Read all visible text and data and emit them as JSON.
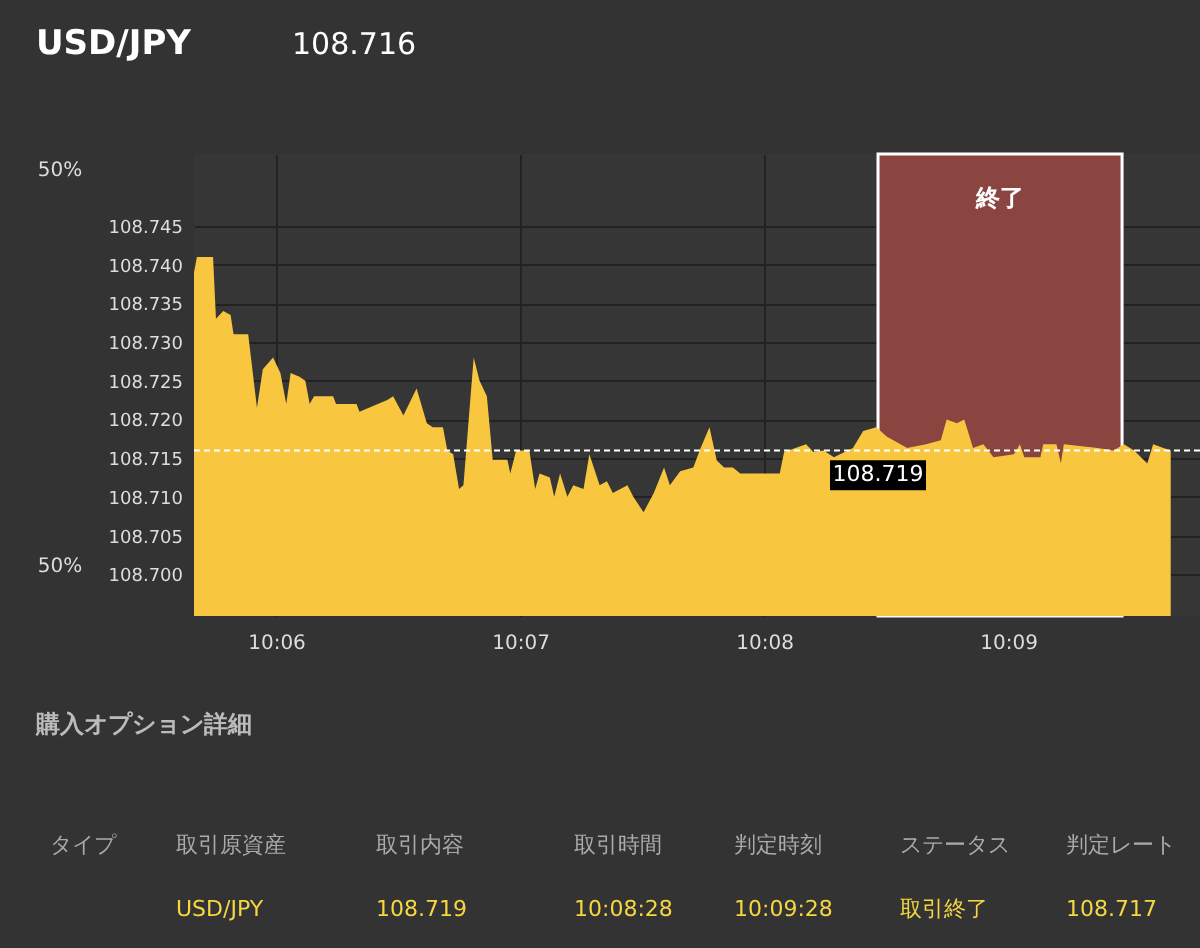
{
  "chart_data": {
    "type": "area",
    "title": "USD/JPY",
    "subtitle": "108.716",
    "x": [
      10.0944,
      10.0946,
      10.0957,
      10.0959,
      10.0964,
      10.0969,
      10.0971,
      10.0981,
      10.0987,
      10.0991,
      10.0998,
      10.1003,
      10.1007,
      10.101,
      10.1016,
      10.102,
      10.1023,
      10.1026,
      10.1039,
      10.1041,
      10.1055,
      10.1057,
      10.1076,
      10.108,
      10.1087,
      10.1096,
      10.1103,
      10.1107,
      10.1114,
      10.1117,
      10.1121,
      10.1125,
      10.1128,
      10.1135,
      10.1139,
      10.1144,
      10.1148,
      10.1158,
      10.116,
      10.1164,
      10.1173,
      10.1177,
      10.118,
      10.1187,
      10.119,
      10.1194,
      10.1199,
      10.1203,
      10.121,
      10.1214,
      10.1221,
      10.1226,
      10.123,
      10.124,
      10.1244,
      10.1251,
      10.1258,
      10.1265,
      10.1269,
      10.1276,
      10.1285,
      10.129,
      10.1296,
      10.1301,
      10.1306,
      10.1312,
      10.1317,
      10.1344,
      10.1347,
      10.1362,
      10.1367,
      10.1374,
      10.1381,
      10.1394,
      10.1401,
      10.141,
      10.1417,
      10.1431,
      10.1444,
      10.1454,
      10.1458,
      10.1465,
      10.147,
      10.1476,
      10.1483,
      10.149,
      10.1504,
      10.1508,
      10.1511,
      10.1522,
      10.1524,
      10.1533,
      10.1536,
      10.1538,
      10.1561,
      10.1572,
      10.1579,
      10.1586,
      10.1595,
      10.1599,
      10.1606,
      10.1611
    ],
    "series": [
      {
        "color": "#f9c73f",
        "values": [
          108.739,
          108.741,
          108.741,
          108.733,
          108.734,
          108.7335,
          108.731,
          108.731,
          108.7215,
          108.7265,
          108.728,
          108.726,
          108.722,
          108.726,
          108.7255,
          108.725,
          108.722,
          108.723,
          108.723,
          108.722,
          108.722,
          108.721,
          108.7225,
          108.723,
          108.7205,
          108.724,
          108.7195,
          108.719,
          108.719,
          108.716,
          108.7155,
          108.711,
          108.7115,
          108.728,
          108.725,
          108.723,
          108.7148,
          108.7148,
          108.713,
          108.716,
          108.716,
          108.711,
          108.713,
          108.7125,
          108.71,
          108.713,
          108.71,
          108.7115,
          108.711,
          108.7155,
          108.7115,
          108.712,
          108.7105,
          108.7115,
          108.71,
          108.708,
          108.7105,
          108.7138,
          108.7115,
          108.7133,
          108.7138,
          108.7163,
          108.719,
          108.7147,
          108.7138,
          108.7138,
          108.713,
          108.713,
          108.7158,
          108.7168,
          108.7158,
          108.716,
          108.7151,
          108.7163,
          108.7185,
          108.719,
          108.7178,
          108.7163,
          108.7168,
          108.7173,
          108.72,
          108.7195,
          108.72,
          108.7163,
          108.7168,
          108.7151,
          108.7155,
          108.7168,
          108.7151,
          108.7151,
          108.7168,
          108.7168,
          108.7143,
          108.7168,
          108.7163,
          108.716,
          108.7168,
          108.716,
          108.7143,
          108.7168,
          108.7163,
          108.716
        ]
      }
    ],
    "xlim": [
      10.0944,
      10.1631
    ],
    "ylim": [
      108.6946,
      108.7543
    ],
    "xticks": [
      {
        "value": 10.1,
        "label": "10:06"
      },
      {
        "value": 10.116667,
        "label": "10:07"
      },
      {
        "value": 10.133333,
        "label": "10:08"
      },
      {
        "value": 10.15,
        "label": "10:09"
      }
    ],
    "yticks": [
      {
        "value": 108.7,
        "label": "108.700"
      },
      {
        "value": 108.705,
        "label": "108.705"
      },
      {
        "value": 108.71,
        "label": "108.710"
      },
      {
        "value": 108.715,
        "label": "108.715"
      },
      {
        "value": 108.72,
        "label": "108.720"
      },
      {
        "value": 108.725,
        "label": "108.725"
      },
      {
        "value": 108.73,
        "label": "108.730"
      },
      {
        "value": 108.735,
        "label": "108.735"
      },
      {
        "value": 108.74,
        "label": "108.740"
      },
      {
        "value": 108.745,
        "label": "108.745"
      }
    ],
    "grid": true,
    "ref_lines": [
      {
        "axis": "y",
        "value": 108.716,
        "color": "#ffffff",
        "line_style": "dashed"
      }
    ],
    "bands": [
      {
        "axis": "x",
        "from": 10.141111,
        "to": 10.157778,
        "label": "終了",
        "color": "#8b4540"
      }
    ],
    "annotations": [
      {
        "text": "108.719",
        "x": 10.141111,
        "y": 108.719
      },
      "50%",
      "50%",
      "購入オプション詳細",
      "タイプ",
      "取引原資産",
      "取引内容",
      "取引時間",
      "判定時刻",
      "ステータス",
      "判定レート",
      "USD/JPY",
      "108.719",
      "10:08:28",
      "10:09:28",
      "取引終了",
      "108.717"
    ]
  }
}
